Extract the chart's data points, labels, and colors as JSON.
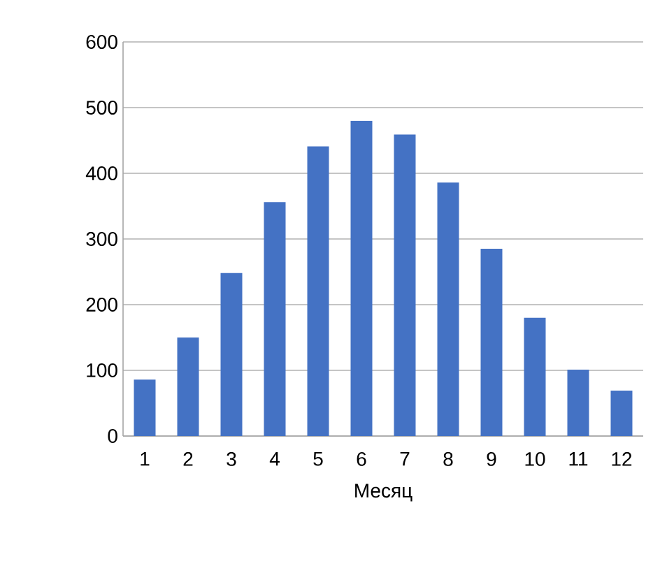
{
  "chart_data": {
    "type": "bar",
    "xlabel": "Месяц",
    "categories": [
      "1",
      "2",
      "3",
      "4",
      "5",
      "6",
      "7",
      "8",
      "9",
      "10",
      "11",
      "12"
    ],
    "values": [
      86,
      150,
      248,
      356,
      441,
      480,
      459,
      386,
      285,
      180,
      101,
      69
    ],
    "color": "#4472c4",
    "ylim": [
      0,
      600
    ],
    "yticks": [
      0,
      100,
      200,
      300,
      400,
      500,
      600
    ],
    "grid": "y"
  }
}
